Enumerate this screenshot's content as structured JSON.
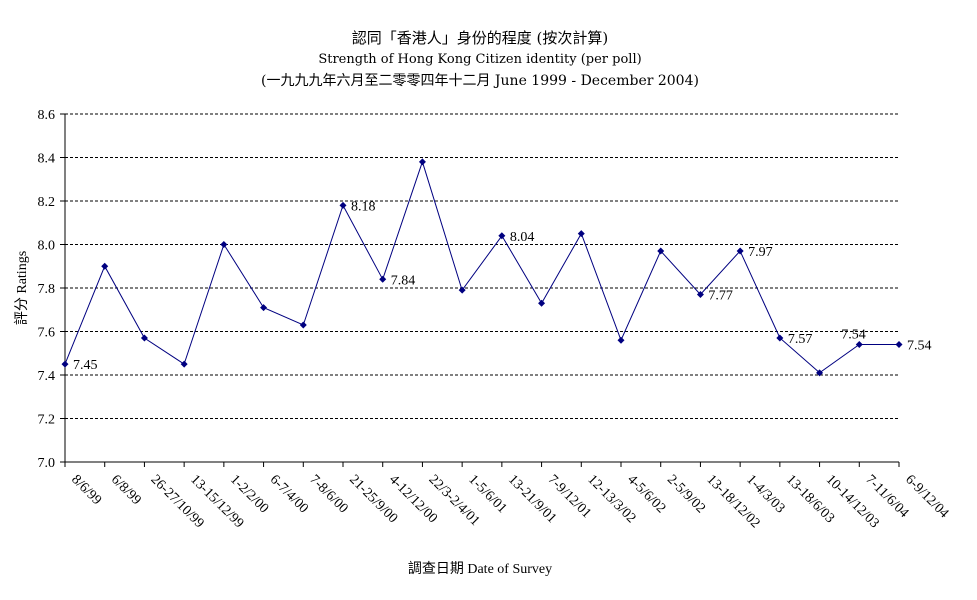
{
  "chart_data": {
    "type": "line",
    "title": "認同「香港人」身份的程度 (按次計算)",
    "subtitle": "Strength of Hong Kong Citizen identity (per poll)",
    "subtitle2": "(一九九九年六月至二零零四年十二月 June 1999 - December 2004)",
    "xlabel": "調查日期 Date of Survey",
    "ylabel": "評分 Ratings",
    "ylim": [
      7.0,
      8.6
    ],
    "yticks": [
      "7.0",
      "7.2",
      "7.4",
      "7.6",
      "7.8",
      "8.0",
      "8.2",
      "8.4",
      "8.6"
    ],
    "grid": "horizontal dashed",
    "categories": [
      "8/6/99",
      "6/8/99",
      "26-27/10/99",
      "13-15/12/99",
      "1-2/2/00",
      "6-7/4/00",
      "7-8/6/00",
      "21-25/9/00",
      "4-12/12/00",
      "22/3-2/4/01",
      "1-5/6/01",
      "13-21/9/01",
      "7-9/12/01",
      "12-13/3/02",
      "4-5/6/02",
      "2-5/9/02",
      "13-18/12/02",
      "1-4/3/03",
      "13-18/6/03",
      "10-14/12/03",
      "7-11/6/04",
      "6-9/12/04"
    ],
    "series": [
      {
        "values": [
          7.45,
          7.9,
          7.57,
          7.45,
          8.0,
          7.71,
          7.63,
          8.18,
          7.84,
          8.38,
          7.79,
          8.04,
          7.73,
          8.05,
          7.56,
          7.97,
          7.77,
          7.97,
          7.57,
          7.41,
          7.54,
          7.54
        ],
        "color": "#000080"
      }
    ],
    "data_labels": [
      {
        "index": 0,
        "text": "7.45"
      },
      {
        "index": 7,
        "text": "8.18"
      },
      {
        "index": 8,
        "text": "7.84"
      },
      {
        "index": 11,
        "text": "8.04"
      },
      {
        "index": 16,
        "text": "7.77"
      },
      {
        "index": 17,
        "text": "7.97"
      },
      {
        "index": 18,
        "text": "7.57"
      },
      {
        "index": 20,
        "text": "7.54"
      },
      {
        "index": 21,
        "text": "7.54"
      }
    ]
  }
}
